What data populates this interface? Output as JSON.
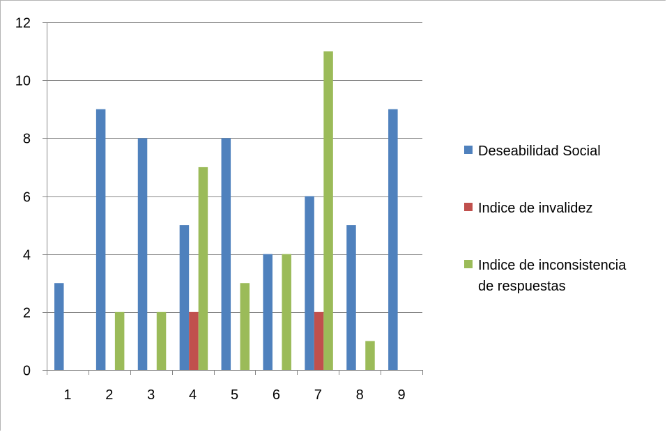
{
  "chart_data": {
    "type": "bar",
    "categories": [
      "1",
      "2",
      "3",
      "4",
      "5",
      "6",
      "7",
      "8",
      "9"
    ],
    "series": [
      {
        "name": "Deseabilidad Social",
        "color": "#4f81bd",
        "values": [
          3,
          9,
          8,
          5,
          8,
          4,
          6,
          5,
          9
        ]
      },
      {
        "name": "Indice de invalidez",
        "color": "#c0504d",
        "values": [
          0,
          0,
          0,
          2,
          0,
          0,
          2,
          0,
          0
        ]
      },
      {
        "name": "Indice de inconsistencia de respuestas",
        "name_lines": [
          "Indice de inconsistencia",
          "de respuestas"
        ],
        "color": "#9bbb59",
        "values": [
          0,
          2,
          2,
          7,
          3,
          4,
          11,
          1,
          0
        ]
      }
    ],
    "ylim": [
      0,
      12
    ],
    "yticks": [
      0,
      2,
      4,
      6,
      8,
      10,
      12
    ],
    "title": "",
    "xlabel": "",
    "ylabel": "",
    "grid": true,
    "legend_position": "right"
  }
}
